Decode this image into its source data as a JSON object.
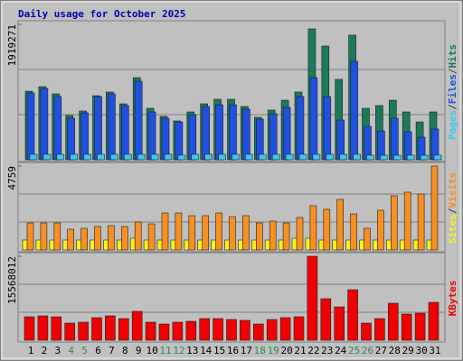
{
  "chart_data": [
    {
      "type": "bar",
      "title": "Daily usage for October 2025",
      "legend_separator": "/",
      "ylim": [
        0,
        1919271
      ],
      "yticks": [
        1919271
      ],
      "series": [
        {
          "name": "Pages",
          "color": "#40c8f0",
          "values": [
            77000,
            77000,
            77000,
            77000,
            77000,
            77000,
            77000,
            77000,
            77000,
            77000,
            77000,
            64000,
            77000,
            77000,
            77000,
            77000,
            77000,
            77000,
            77000,
            77000,
            77000,
            77000,
            77000,
            77000,
            77000,
            64000,
            64000,
            64000,
            64000,
            64000,
            64000
          ]
        },
        {
          "name": "Files",
          "color": "#2050e0",
          "values": [
            947000,
            1011000,
            896000,
            589000,
            665000,
            896000,
            934000,
            768000,
            1113000,
            678000,
            589000,
            537000,
            640000,
            755000,
            780000,
            780000,
            717000,
            576000,
            653000,
            742000,
            896000,
            1164000,
            896000,
            563000,
            1395000,
            473000,
            409000,
            589000,
            397000,
            320000,
            435000
          ]
        },
        {
          "name": "Hits",
          "color": "#1a7a5a",
          "values": [
            972000,
            1036000,
            934000,
            627000,
            691000,
            908000,
            960000,
            793000,
            1164000,
            729000,
            614000,
            550000,
            678000,
            793000,
            857000,
            857000,
            755000,
            601000,
            704000,
            844000,
            960000,
            1855000,
            1612000,
            1139000,
            1766000,
            729000,
            768000,
            844000,
            678000,
            537000,
            678000
          ]
        }
      ]
    },
    {
      "type": "bar",
      "legend_separator": "/",
      "ylim": [
        0,
        4759
      ],
      "yticks": [
        4759
      ],
      "series": [
        {
          "name": "Sites",
          "color": "#f8f020",
          "values": [
            563,
            563,
            563,
            563,
            563,
            563,
            563,
            563,
            666,
            563,
            563,
            563,
            563,
            563,
            563,
            563,
            563,
            563,
            563,
            563,
            666,
            666,
            563,
            563,
            563,
            563,
            563,
            563,
            563,
            563,
            563
          ]
        },
        {
          "name": "Visits",
          "color": "#f89020",
          "values": [
            1536,
            1536,
            1536,
            1178,
            1229,
            1331,
            1382,
            1331,
            1587,
            1485,
            2099,
            2099,
            1946,
            1946,
            2099,
            1894,
            1946,
            1536,
            1638,
            1536,
            1843,
            2509,
            2304,
            2867,
            2048,
            1229,
            2253,
            3072,
            3277,
            3174,
            4759
          ]
        }
      ]
    },
    {
      "type": "bar",
      "ylim": [
        0,
        15568012
      ],
      "yticks": [
        15568012
      ],
      "categories": [
        "1",
        "2",
        "3",
        "4",
        "5",
        "6",
        "7",
        "8",
        "9",
        "10",
        "11",
        "12",
        "13",
        "14",
        "15",
        "16",
        "17",
        "18",
        "19",
        "20",
        "21",
        "22",
        "23",
        "24",
        "25",
        "26",
        "27",
        "28",
        "29",
        "30",
        "31"
      ],
      "highlight_categories": [
        "4",
        "5",
        "11",
        "12",
        "18",
        "19",
        "25",
        "26"
      ],
      "highlight_color": "#2e8b57",
      "series": [
        {
          "name": "KBytes",
          "color": "#f00000",
          "values": [
            4352000,
            4520000,
            4352000,
            3181000,
            3348000,
            4185000,
            4520000,
            4018000,
            5357000,
            3348000,
            3013000,
            3348000,
            3515000,
            4018000,
            4018000,
            3850000,
            3683000,
            3013000,
            3850000,
            4185000,
            4352000,
            15568012,
            7700000,
            6194000,
            9374000,
            3181000,
            4018000,
            6863000,
            4855000,
            5022000,
            7031000
          ]
        }
      ]
    }
  ]
}
